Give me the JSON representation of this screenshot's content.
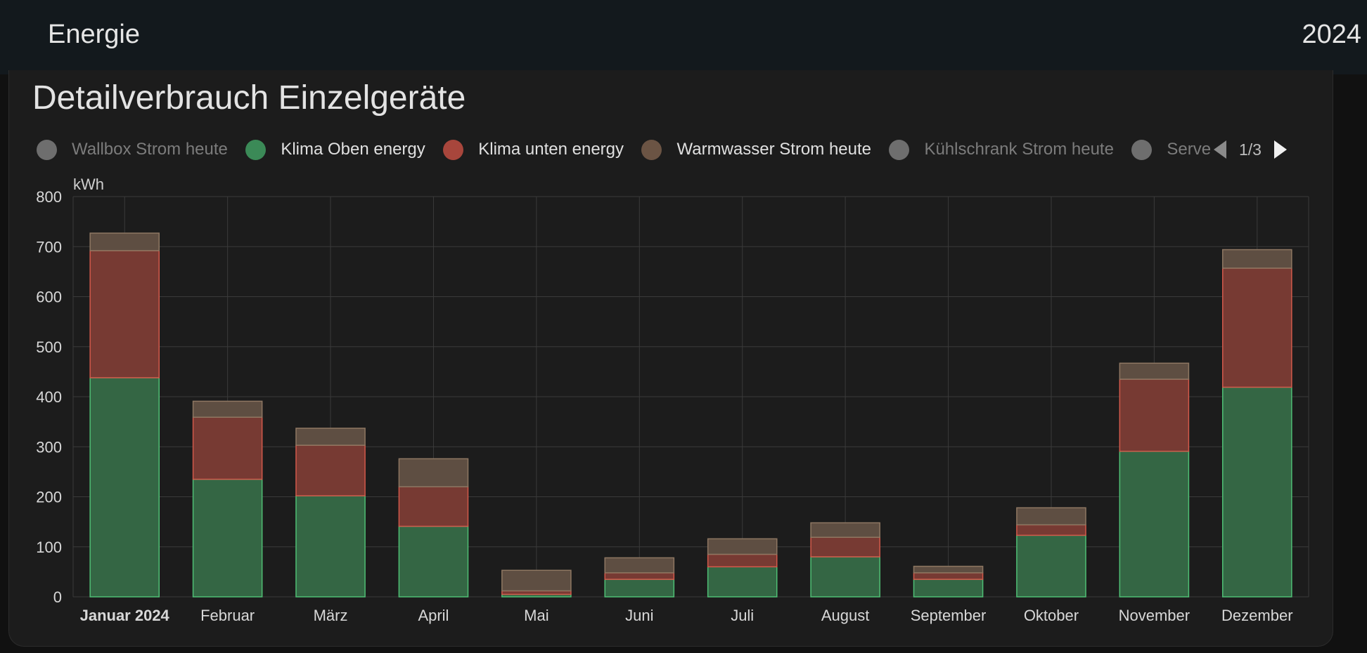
{
  "header": {
    "title": "Energie",
    "year": "2024"
  },
  "card": {
    "title": "Detailverbrauch Einzelgeräte"
  },
  "legend": {
    "items": [
      {
        "label": "Wallbox Strom heute",
        "color": "#6e6e6e",
        "active": false
      },
      {
        "label": "Klima Oben energy",
        "color": "#3b8a57",
        "active": true
      },
      {
        "label": "Klima unten energy",
        "color": "#a8463c",
        "active": true
      },
      {
        "label": "Warmwasser Strom heute",
        "color": "#6b5444",
        "active": true
      },
      {
        "label": "Kühlschrank Strom heute",
        "color": "#6e6e6e",
        "active": false
      },
      {
        "label": "Server Str",
        "color": "#6e6e6e",
        "active": false
      }
    ],
    "page": "1/3"
  },
  "chart_data": {
    "type": "bar",
    "stacked": true,
    "ylabel": "kWh",
    "ylim": [
      0,
      800
    ],
    "yticks": [
      0,
      100,
      200,
      300,
      400,
      500,
      600,
      700,
      800
    ],
    "grid": true,
    "categories": [
      "Januar 2024",
      "Februar",
      "März",
      "April",
      "Mai",
      "Juni",
      "Juli",
      "August",
      "September",
      "Oktober",
      "November",
      "Dezember"
    ],
    "series": [
      {
        "name": "Klima Oben energy",
        "fill": "#346644",
        "stroke": "#4fbf74",
        "values": [
          438,
          235,
          202,
          141,
          5,
          35,
          60,
          80,
          35,
          123,
          291,
          419
        ]
      },
      {
        "name": "Klima unten energy",
        "fill": "#773a33",
        "stroke": "#d2594b",
        "values": [
          254,
          124,
          101,
          79,
          7,
          13,
          25,
          39,
          13,
          21,
          144,
          238
        ]
      },
      {
        "name": "Warmwasser Strom heute",
        "fill": "#5e4e42",
        "stroke": "#8e7762",
        "values": [
          35,
          32,
          34,
          56,
          41,
          30,
          31,
          29,
          13,
          34,
          32,
          37
        ]
      }
    ]
  }
}
